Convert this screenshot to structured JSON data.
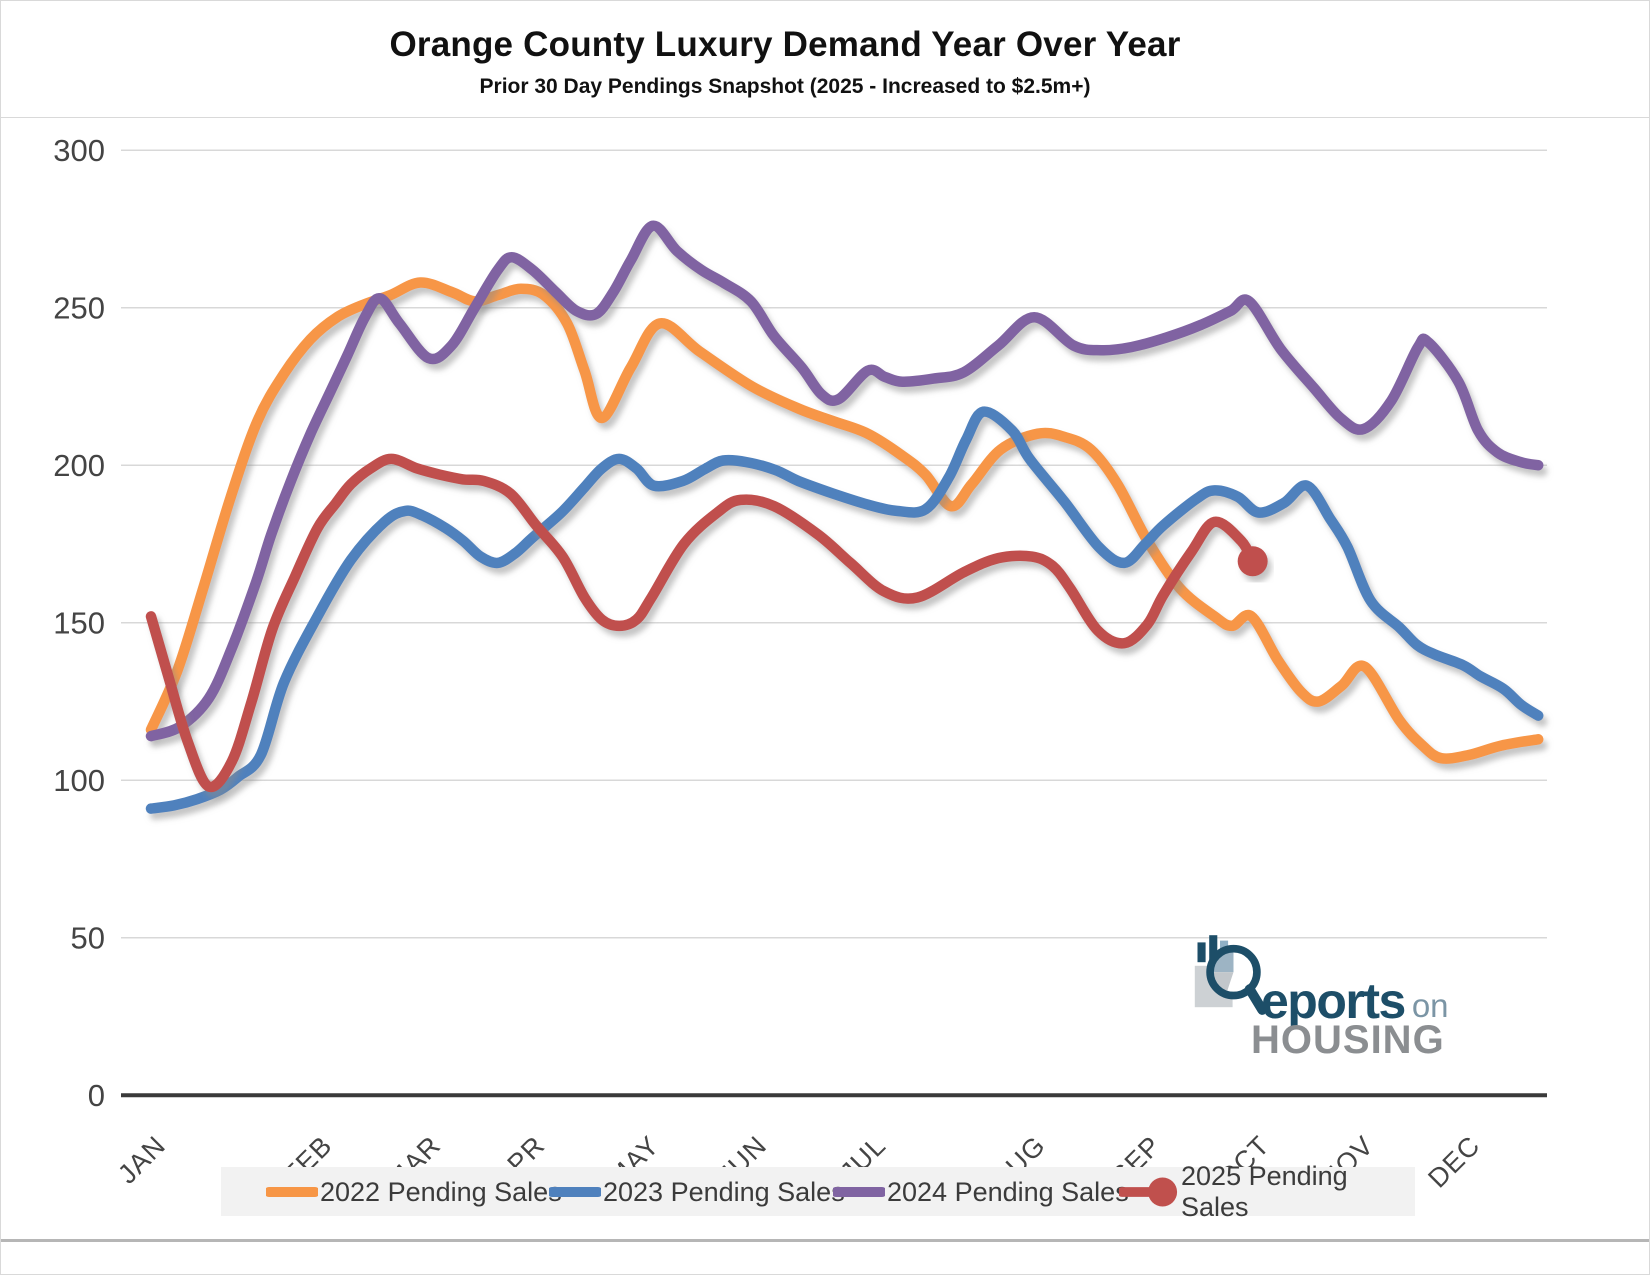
{
  "header": {
    "title": "Orange County Luxury Demand Year Over Year",
    "subtitle": "Prior 30 Day Pendings Snapshot (2025 - Increased to $2.5m+)"
  },
  "logo": {
    "reports": "eports",
    "on": "on",
    "housing": "HOUSING",
    "navy": "#1d4e68",
    "gray": "#8b8e91"
  },
  "chart_data": {
    "type": "line",
    "title": "Orange County Luxury Demand Year Over Year",
    "subtitle": "Prior 30 Day Pendings Snapshot (2025 - Increased to $2.5m+)",
    "ylabel": "",
    "xlabel": "",
    "ylim": [
      0,
      300
    ],
    "y_ticks": [
      0,
      50,
      100,
      150,
      200,
      250,
      300
    ],
    "grid": true,
    "legend_position": "bottom",
    "months": [
      {
        "label": "JAN",
        "x": 0.02
      },
      {
        "label": "FEB",
        "x": 1.46
      },
      {
        "label": "MAR",
        "x": 2.4
      },
      {
        "label": "APR",
        "x": 3.3
      },
      {
        "label": "MAY",
        "x": 4.29
      },
      {
        "label": "JUN",
        "x": 5.22
      },
      {
        "label": "JUL",
        "x": 6.25
      },
      {
        "label": "AUG",
        "x": 7.63
      },
      {
        "label": "SEP",
        "x": 8.63
      },
      {
        "label": "OCT",
        "x": 9.57
      },
      {
        "label": "NOV",
        "x": 10.47
      },
      {
        "label": "DEC",
        "x": 11.39
      }
    ],
    "series": [
      {
        "name": "2022 Pending Sales",
        "color": "#F79646",
        "end_marker": false,
        "points": [
          [
            0,
            116
          ],
          [
            0.23,
            135
          ],
          [
            0.46,
            162
          ],
          [
            0.69,
            190
          ],
          [
            0.92,
            214
          ],
          [
            1.15,
            229
          ],
          [
            1.38,
            240
          ],
          [
            1.61,
            247
          ],
          [
            1.84,
            251
          ],
          [
            2.07,
            254
          ],
          [
            2.33,
            258
          ],
          [
            2.6,
            255
          ],
          [
            2.8,
            252
          ],
          [
            3.0,
            254
          ],
          [
            3.2,
            256
          ],
          [
            3.4,
            254
          ],
          [
            3.6,
            245
          ],
          [
            3.75,
            230
          ],
          [
            3.9,
            215
          ],
          [
            4.15,
            231
          ],
          [
            4.4,
            245
          ],
          [
            4.75,
            236
          ],
          [
            5.2,
            225
          ],
          [
            5.6,
            218
          ],
          [
            5.9,
            214
          ],
          [
            6.2,
            210
          ],
          [
            6.5,
            203
          ],
          [
            6.7,
            197
          ],
          [
            6.92,
            187
          ],
          [
            7.1,
            194
          ],
          [
            7.35,
            205
          ],
          [
            7.67,
            210
          ],
          [
            7.9,
            209
          ],
          [
            8.13,
            205
          ],
          [
            8.36,
            194
          ],
          [
            8.62,
            176
          ],
          [
            8.9,
            161
          ],
          [
            9.2,
            152
          ],
          [
            9.35,
            149
          ],
          [
            9.52,
            152
          ],
          [
            9.75,
            138
          ],
          [
            9.95,
            128
          ],
          [
            10.1,
            125
          ],
          [
            10.3,
            130
          ],
          [
            10.5,
            136
          ],
          [
            10.8,
            119
          ],
          [
            11.0,
            111
          ],
          [
            11.16,
            107
          ],
          [
            11.4,
            108
          ],
          [
            11.68,
            111
          ],
          [
            12,
            113
          ]
        ]
      },
      {
        "name": "2023 Pending Sales",
        "color": "#4F81BD",
        "end_marker": false,
        "points": [
          [
            0,
            91
          ],
          [
            0.2,
            92
          ],
          [
            0.4,
            94
          ],
          [
            0.6,
            97
          ],
          [
            0.75,
            101
          ],
          [
            0.95,
            108
          ],
          [
            1.15,
            131
          ],
          [
            1.44,
            152
          ],
          [
            1.73,
            170
          ],
          [
            2.02,
            182
          ],
          [
            2.2,
            185.5
          ],
          [
            2.35,
            184
          ],
          [
            2.55,
            180
          ],
          [
            2.7,
            176
          ],
          [
            2.85,
            171
          ],
          [
            3.0,
            169
          ],
          [
            3.15,
            172
          ],
          [
            3.3,
            177
          ],
          [
            3.55,
            185
          ],
          [
            3.75,
            193
          ],
          [
            3.9,
            199
          ],
          [
            4.05,
            202
          ],
          [
            4.2,
            199
          ],
          [
            4.35,
            193.5
          ],
          [
            4.6,
            195
          ],
          [
            4.8,
            199
          ],
          [
            4.95,
            201.5
          ],
          [
            5.15,
            201
          ],
          [
            5.4,
            198.5
          ],
          [
            5.6,
            195
          ],
          [
            5.9,
            191
          ],
          [
            6.2,
            187.5
          ],
          [
            6.45,
            185.5
          ],
          [
            6.7,
            186
          ],
          [
            6.9,
            196
          ],
          [
            7.05,
            208
          ],
          [
            7.2,
            217
          ],
          [
            7.45,
            211
          ],
          [
            7.6,
            202
          ],
          [
            7.9,
            188.5
          ],
          [
            8.2,
            174
          ],
          [
            8.42,
            169
          ],
          [
            8.6,
            175
          ],
          [
            8.76,
            181
          ],
          [
            9.05,
            189.5
          ],
          [
            9.2,
            192
          ],
          [
            9.4,
            190
          ],
          [
            9.58,
            185
          ],
          [
            9.8,
            188
          ],
          [
            10.0,
            193.5
          ],
          [
            10.2,
            183
          ],
          [
            10.35,
            174
          ],
          [
            10.55,
            157
          ],
          [
            10.8,
            148.5
          ],
          [
            10.95,
            143
          ],
          [
            11.1,
            140
          ],
          [
            11.35,
            136.5
          ],
          [
            11.5,
            133
          ],
          [
            11.7,
            129
          ],
          [
            11.85,
            124
          ],
          [
            12,
            120.5
          ]
        ]
      },
      {
        "name": "2024 Pending Sales",
        "color": "#8064A2",
        "end_marker": false,
        "points": [
          [
            0,
            114
          ],
          [
            0.25,
            117
          ],
          [
            0.5,
            126
          ],
          [
            0.7,
            142
          ],
          [
            0.91,
            163
          ],
          [
            1.04,
            178
          ],
          [
            1.21,
            195
          ],
          [
            1.38,
            210
          ],
          [
            1.56,
            224
          ],
          [
            1.7,
            235
          ],
          [
            1.85,
            247
          ],
          [
            1.98,
            253
          ],
          [
            2.15,
            245
          ],
          [
            2.4,
            234
          ],
          [
            2.6,
            238
          ],
          [
            2.8,
            250
          ],
          [
            3.0,
            262
          ],
          [
            3.12,
            266
          ],
          [
            3.3,
            262
          ],
          [
            3.5,
            255
          ],
          [
            3.68,
            249
          ],
          [
            3.85,
            248
          ],
          [
            4.0,
            255
          ],
          [
            4.15,
            265
          ],
          [
            4.34,
            276
          ],
          [
            4.55,
            268
          ],
          [
            4.76,
            262
          ],
          [
            4.95,
            258
          ],
          [
            5.19,
            252
          ],
          [
            5.39,
            241
          ],
          [
            5.63,
            231
          ],
          [
            5.8,
            222.5
          ],
          [
            5.95,
            221
          ],
          [
            6.2,
            230
          ],
          [
            6.35,
            228
          ],
          [
            6.5,
            226.5
          ],
          [
            6.77,
            227.5
          ],
          [
            7.03,
            229.5
          ],
          [
            7.33,
            238
          ],
          [
            7.64,
            247
          ],
          [
            7.98,
            238
          ],
          [
            8.22,
            236.5
          ],
          [
            8.48,
            237.5
          ],
          [
            8.78,
            240.5
          ],
          [
            9.08,
            244.5
          ],
          [
            9.34,
            249
          ],
          [
            9.5,
            252
          ],
          [
            9.77,
            237
          ],
          [
            10.06,
            224.5
          ],
          [
            10.29,
            215
          ],
          [
            10.49,
            211.5
          ],
          [
            10.73,
            220.5
          ],
          [
            10.96,
            237.5
          ],
          [
            11.05,
            239
          ],
          [
            11.31,
            226.5
          ],
          [
            11.48,
            211
          ],
          [
            11.65,
            204
          ],
          [
            11.85,
            201
          ],
          [
            12,
            200
          ]
        ]
      },
      {
        "name": "2025 Pending Sales",
        "color": "#C0504D",
        "end_marker": true,
        "points": [
          [
            0,
            152
          ],
          [
            0.15,
            133
          ],
          [
            0.32,
            112
          ],
          [
            0.5,
            98
          ],
          [
            0.7,
            106
          ],
          [
            0.87,
            125
          ],
          [
            1.05,
            148
          ],
          [
            1.25,
            165
          ],
          [
            1.44,
            180
          ],
          [
            1.6,
            188
          ],
          [
            1.73,
            194
          ],
          [
            1.9,
            199
          ],
          [
            2.08,
            202
          ],
          [
            2.3,
            199
          ],
          [
            2.5,
            197
          ],
          [
            2.7,
            195.5
          ],
          [
            2.88,
            195
          ],
          [
            3.11,
            191
          ],
          [
            3.33,
            181
          ],
          [
            3.56,
            171
          ],
          [
            3.75,
            158
          ],
          [
            3.9,
            151
          ],
          [
            4.05,
            149
          ],
          [
            4.2,
            151
          ],
          [
            4.33,
            158
          ],
          [
            4.61,
            175
          ],
          [
            4.9,
            185
          ],
          [
            5.1,
            189
          ],
          [
            5.39,
            187
          ],
          [
            5.77,
            178
          ],
          [
            6.05,
            169
          ],
          [
            6.34,
            160
          ],
          [
            6.63,
            158
          ],
          [
            7.03,
            166
          ],
          [
            7.33,
            170.5
          ],
          [
            7.62,
            171
          ],
          [
            7.8,
            168
          ],
          [
            7.95,
            161
          ],
          [
            8.19,
            147.5
          ],
          [
            8.42,
            143.5
          ],
          [
            8.62,
            149.5
          ],
          [
            8.76,
            159
          ],
          [
            9.0,
            172.5
          ],
          [
            9.2,
            182
          ],
          [
            9.43,
            176
          ],
          [
            9.53,
            169.5
          ]
        ]
      }
    ],
    "style": {
      "gridline_color": "#d8d8d8",
      "axis_color": "#3a3a3a",
      "tick_label_color": "#444444",
      "line_width": 10.5,
      "legend_bg": "#f2f2f2"
    }
  }
}
